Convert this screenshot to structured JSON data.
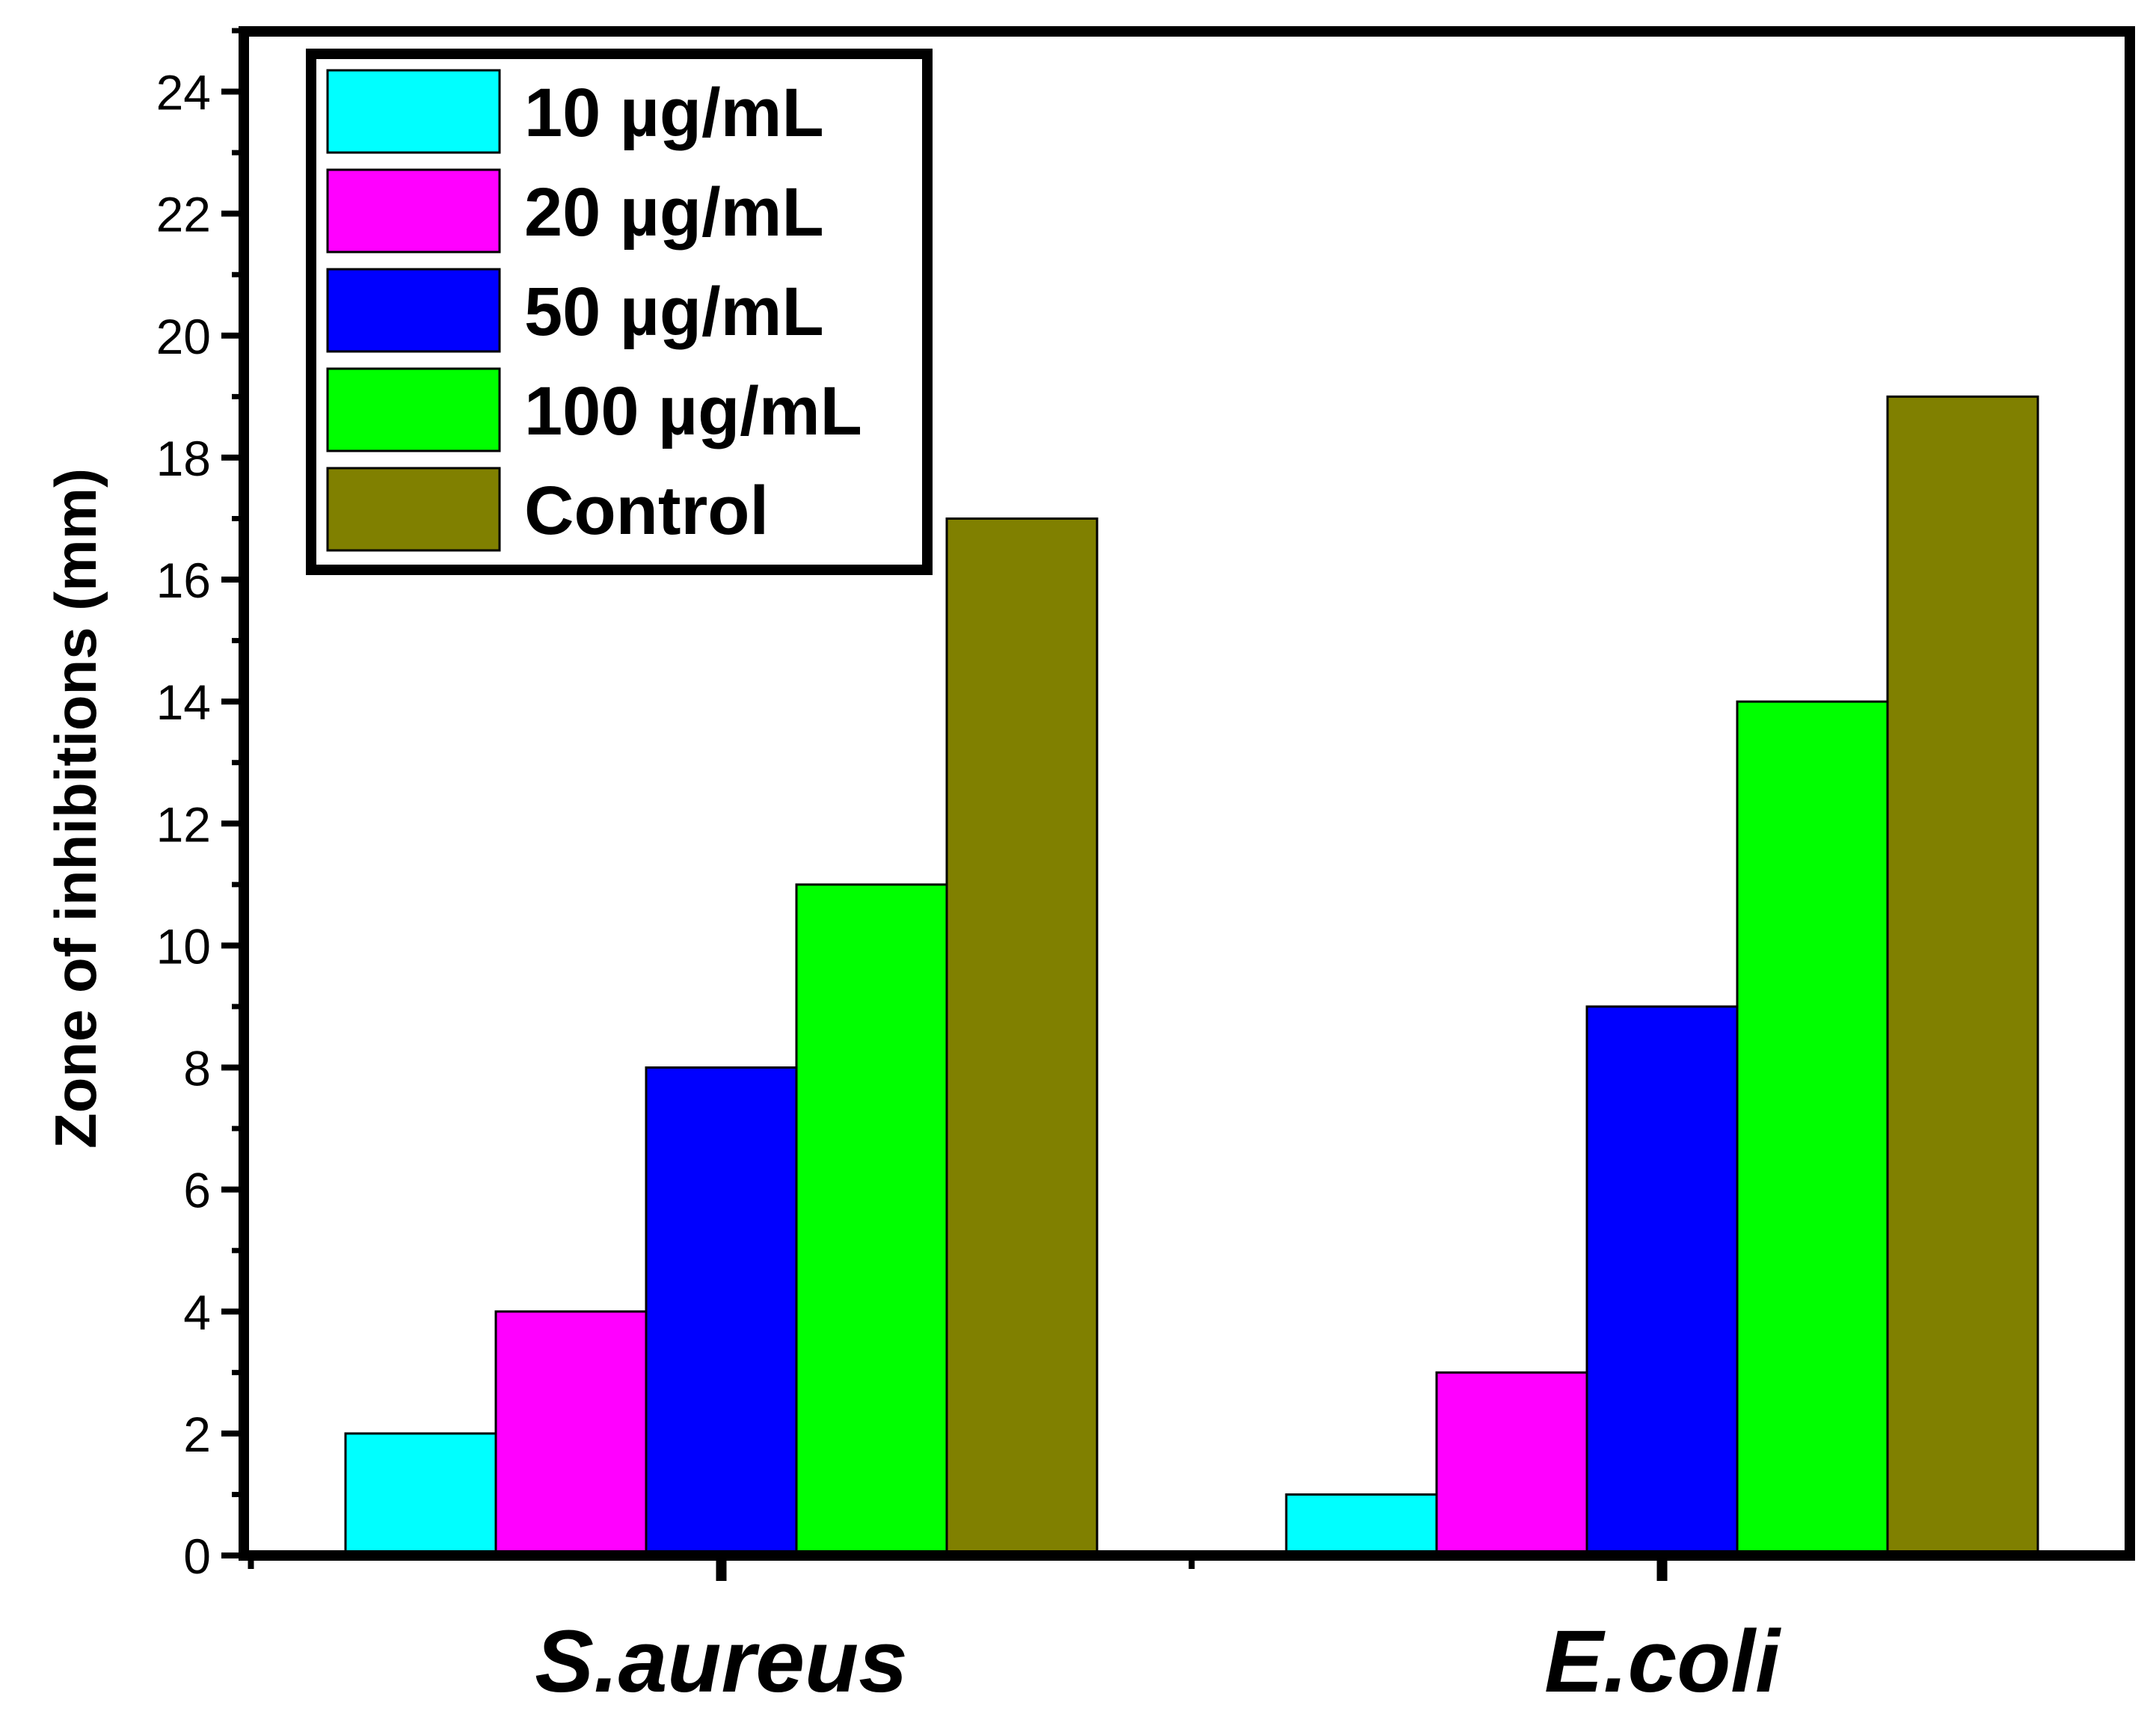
{
  "chart_data": {
    "type": "bar",
    "title": "",
    "xlabel": "",
    "ylabel": "Zone of inhibitions (mm)",
    "ylim": [
      0,
      25
    ],
    "yticks": [
      0,
      2,
      4,
      6,
      8,
      10,
      12,
      14,
      16,
      18,
      20,
      22,
      24
    ],
    "y_minor_step": 1,
    "categories": [
      "S.aureus",
      "E.coli"
    ],
    "series": [
      {
        "name": "10 µg/mL",
        "color": "#00FFFF",
        "values": [
          2,
          1
        ]
      },
      {
        "name": "20 µg/mL",
        "color": "#FF00FF",
        "values": [
          4,
          3
        ]
      },
      {
        "name": "50 µg/mL",
        "color": "#0000FF",
        "values": [
          8,
          9
        ]
      },
      {
        "name": "100 µg/mL",
        "color": "#00FF00",
        "values": [
          11,
          14
        ]
      },
      {
        "name": "Control",
        "color": "#808000",
        "values": [
          17,
          19
        ]
      }
    ],
    "legend_position": "top-left",
    "grid": false
  }
}
